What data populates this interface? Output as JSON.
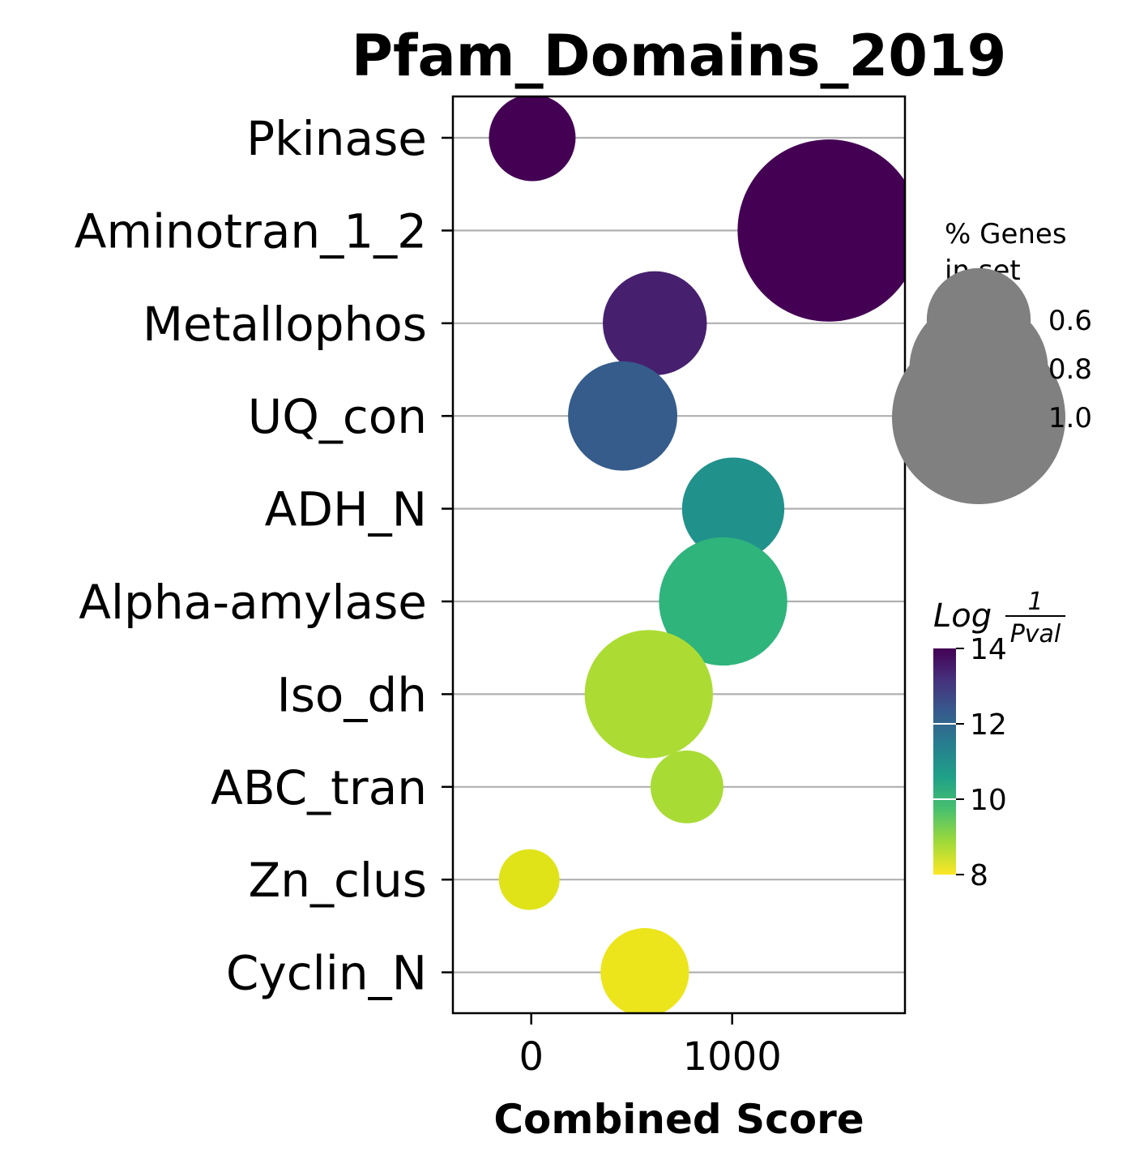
{
  "chart_data": {
    "type": "scatter",
    "title": "Pfam_Domains_2019",
    "xlabel": "Combined Score",
    "xlim": [
      -390,
      1860
    ],
    "xticks": [
      0,
      1000
    ],
    "grid": "horizontal",
    "categories": [
      "Pkinase",
      "Aminotran_1_2",
      "Metallophos",
      "UQ_con",
      "ADH_N",
      "Alpha-amylase",
      "Iso_dh",
      "ABC_tran",
      "Zn_clus",
      "Cyclin_N"
    ],
    "points": [
      {
        "label": "Pkinase",
        "x": 5,
        "log_1_pval": 14.0,
        "genes_in_set": 0.5,
        "color": "#440154"
      },
      {
        "label": "Aminotran_1_2",
        "x": 1480,
        "log_1_pval": 14.0,
        "genes_in_set": 1.05,
        "color": "#440154"
      },
      {
        "label": "Metallophos",
        "x": 615,
        "log_1_pval": 13.3,
        "genes_in_set": 0.6,
        "color": "#46206f"
      },
      {
        "label": "UQ_con",
        "x": 455,
        "log_1_pval": 12.3,
        "genes_in_set": 0.63,
        "color": "#355c8b"
      },
      {
        "label": "ADH_N",
        "x": 1005,
        "log_1_pval": 11.2,
        "genes_in_set": 0.59,
        "color": "#21918c"
      },
      {
        "label": "Alpha-amylase",
        "x": 955,
        "log_1_pval": 9.9,
        "genes_in_set": 0.74,
        "color": "#2fb47c"
      },
      {
        "label": "Iso_dh",
        "x": 585,
        "log_1_pval": 8.6,
        "genes_in_set": 0.74,
        "color": "#acdc33"
      },
      {
        "label": "ABC_tran",
        "x": 775,
        "log_1_pval": 8.6,
        "genes_in_set": 0.42,
        "color": "#a8db34"
      },
      {
        "label": "Zn_clus",
        "x": -10,
        "log_1_pval": 8.2,
        "genes_in_set": 0.35,
        "color": "#dfe318"
      },
      {
        "label": "Cyclin_N",
        "x": 565,
        "log_1_pval": 8.0,
        "genes_in_set": 0.51,
        "color": "#ece51b"
      }
    ],
    "size_legend": {
      "title_line1": "% Genes",
      "title_line2": "in set",
      "entries": [
        {
          "label": "0.6",
          "value": 0.6
        },
        {
          "label": "0.8",
          "value": 0.8
        },
        {
          "label": "1.0",
          "value": 1.0
        }
      ],
      "color": "#808080"
    },
    "colorbar": {
      "title_main": "Log",
      "title_num": "1",
      "title_den": "Pval",
      "min": 8,
      "max": 14,
      "ticks": [
        {
          "label": "8",
          "value": 8
        },
        {
          "label": "10",
          "value": 10
        },
        {
          "label": "12",
          "value": 12
        },
        {
          "label": "14",
          "value": 14
        }
      ],
      "colors": [
        "#fde725",
        "#a0da39",
        "#4ac16d",
        "#1fa187",
        "#277f8e",
        "#365c8d",
        "#46327e",
        "#440154"
      ]
    }
  }
}
